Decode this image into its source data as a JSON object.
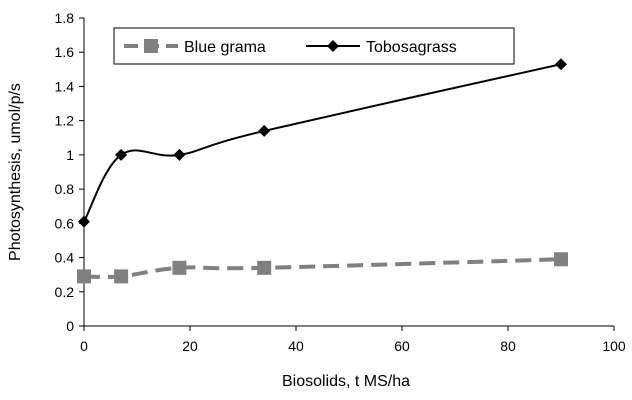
{
  "chart_data": {
    "type": "line",
    "title": "",
    "xlabel": "Biosolids, t MS/ha",
    "ylabel": "Photosynthesis, umol/p/s",
    "xlim": [
      0,
      100
    ],
    "ylim": [
      0,
      1.8
    ],
    "x_ticks": [
      "0",
      "20",
      "40",
      "60",
      "80",
      "100"
    ],
    "y_ticks": [
      "0",
      "0.2",
      "0.4",
      "0.6",
      "0.8",
      "1",
      "1.2",
      "1.4",
      "1.6",
      "1.8"
    ],
    "grid": false,
    "legend_position": "top-left (inside plot)",
    "series": [
      {
        "name": "Blue grama",
        "x": [
          0,
          7,
          18,
          34,
          90
        ],
        "values": [
          0.29,
          0.29,
          0.34,
          0.34,
          0.39
        ],
        "color": "#808080",
        "marker": "square",
        "line_style": "dashed"
      },
      {
        "name": "Tobosagrass",
        "x": [
          0,
          7,
          18,
          34,
          90
        ],
        "values": [
          0.61,
          1.0,
          1.0,
          1.14,
          1.53
        ],
        "color": "#000000",
        "marker": "diamond",
        "line_style": "solid"
      }
    ]
  }
}
